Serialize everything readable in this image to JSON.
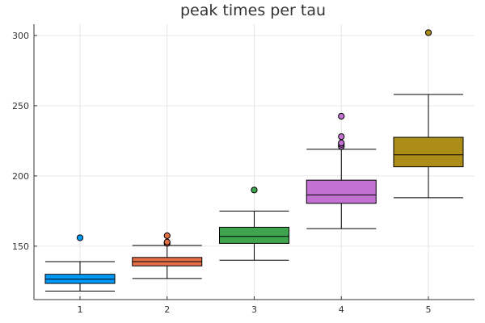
{
  "chart_data": {
    "type": "box",
    "title": "peak times per tau",
    "xlabel": "",
    "ylabel": "",
    "categories": [
      "1",
      "2",
      "3",
      "4",
      "5"
    ],
    "ylim": [
      112,
      308
    ],
    "yticks": [
      150,
      200,
      250,
      300
    ],
    "grid": true,
    "legend": "none",
    "boxes": [
      {
        "category": "1",
        "color": "#009AFA",
        "whisker_low": 118,
        "q1": 123.5,
        "median": 126.5,
        "q3": 130,
        "whisker_high": 139,
        "outliers": [
          156
        ]
      },
      {
        "category": "2",
        "color": "#E36F47",
        "whisker_low": 127,
        "q1": 136,
        "median": 139,
        "q3": 142,
        "whisker_high": 150.5,
        "outliers": [
          152,
          153,
          157.5
        ]
      },
      {
        "category": "3",
        "color": "#3EA44E",
        "whisker_low": 140,
        "q1": 152,
        "median": 157,
        "q3": 163.5,
        "whisker_high": 175,
        "outliers": [
          190
        ]
      },
      {
        "category": "4",
        "color": "#C371D2",
        "whisker_low": 162.5,
        "q1": 180.5,
        "median": 186.5,
        "q3": 197,
        "whisker_high": 219,
        "outliers": [
          221,
          222.5,
          223.5,
          228,
          242.5
        ]
      },
      {
        "category": "5",
        "color": "#AC8D18",
        "whisker_low": 184.5,
        "q1": 206.5,
        "median": 215,
        "q3": 227.5,
        "whisker_high": 258,
        "outliers": [
          302
        ]
      }
    ]
  }
}
